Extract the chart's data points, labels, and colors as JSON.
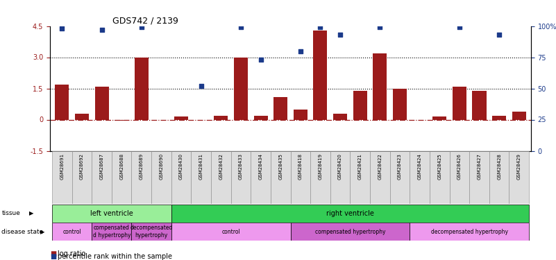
{
  "title": "GDS742 / 2139",
  "samples": [
    "GSM28691",
    "GSM28692",
    "GSM28687",
    "GSM28688",
    "GSM28689",
    "GSM28690",
    "GSM28430",
    "GSM28431",
    "GSM28432",
    "GSM28433",
    "GSM28434",
    "GSM28435",
    "GSM28418",
    "GSM28419",
    "GSM28420",
    "GSM28421",
    "GSM28422",
    "GSM28423",
    "GSM28424",
    "GSM28425",
    "GSM28426",
    "GSM28427",
    "GSM28428",
    "GSM28429"
  ],
  "log_ratio": [
    1.7,
    0.3,
    1.6,
    -0.05,
    3.0,
    0.0,
    0.15,
    0.0,
    0.2,
    3.0,
    0.2,
    1.1,
    0.5,
    4.3,
    0.3,
    1.4,
    3.2,
    1.5,
    0.0,
    0.15,
    1.6,
    1.4,
    0.2,
    0.4
  ],
  "percentile_values": [
    98,
    null,
    97,
    null,
    99,
    null,
    null,
    52,
    null,
    99,
    73,
    null,
    80,
    99,
    93,
    null,
    99,
    null,
    null,
    null,
    99,
    null,
    93,
    null
  ],
  "ylim_left": [
    -1.5,
    4.5
  ],
  "ylim_right": [
    0,
    100
  ],
  "yticks_left": [
    -1.5,
    0,
    1.5,
    3.0,
    4.5
  ],
  "yticks_right": [
    0,
    25,
    50,
    75,
    100
  ],
  "hlines_dotted": [
    1.5,
    3.0
  ],
  "hline_dashed": 0.0,
  "bar_color": "#9B1B1B",
  "scatter_color": "#1B3A8A",
  "background_color": "#ffffff",
  "tissue_regions": [
    {
      "label": "left ventricle",
      "start": 0,
      "end": 5,
      "color": "#99EE99"
    },
    {
      "label": "right ventricle",
      "start": 6,
      "end": 23,
      "color": "#33CC55"
    }
  ],
  "disease_regions": [
    {
      "label": "control",
      "start": 0,
      "end": 1,
      "color": "#EE99EE"
    },
    {
      "label": "compensated\nd hypertrophy",
      "start": 2,
      "end": 3,
      "color": "#CC66CC"
    },
    {
      "label": "decompensated\nhypertrophy",
      "start": 4,
      "end": 5,
      "color": "#CC66CC"
    },
    {
      "label": "control",
      "start": 6,
      "end": 11,
      "color": "#EE99EE"
    },
    {
      "label": "compensated hypertrophy",
      "start": 12,
      "end": 17,
      "color": "#CC66CC"
    },
    {
      "label": "decompensated hypertrophy",
      "start": 18,
      "end": 23,
      "color": "#EE99EE"
    }
  ],
  "legend_items": [
    {
      "label": "log ratio",
      "color": "#9B1B1B",
      "marker": "s"
    },
    {
      "label": "percentile rank within the sample",
      "color": "#1B3A8A",
      "marker": "s"
    }
  ]
}
